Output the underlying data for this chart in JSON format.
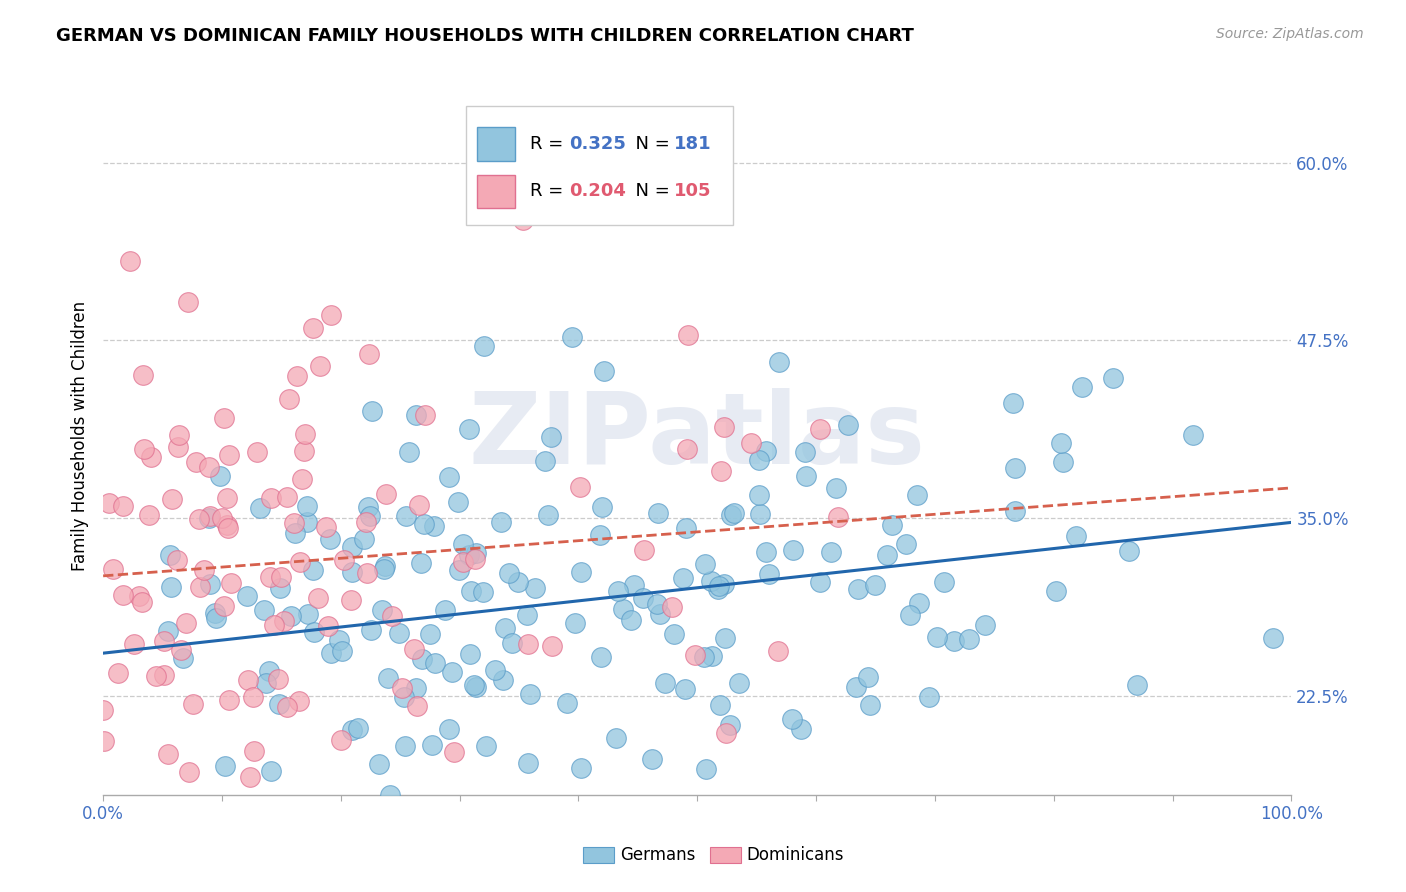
{
  "title": "GERMAN VS DOMINICAN FAMILY HOUSEHOLDS WITH CHILDREN CORRELATION CHART",
  "source": "Source: ZipAtlas.com",
  "ylabel": "Family Households with Children",
  "xlim": [
    0,
    1.0
  ],
  "ylim": [
    0.155,
    0.66
  ],
  "ytick_positions": [
    0.225,
    0.35,
    0.475,
    0.6
  ],
  "ytick_labels": [
    "22.5%",
    "35.0%",
    "47.5%",
    "60.0%"
  ],
  "german_R": 0.325,
  "german_N": 181,
  "dominican_R": 0.204,
  "dominican_N": 105,
  "german_color": "#92c5de",
  "german_edge_color": "#5b9dc9",
  "dominican_color": "#f4a9b5",
  "dominican_edge_color": "#e07090",
  "german_line_color": "#2166ac",
  "dominican_line_color": "#d6604d",
  "watermark": "ZIPatlas",
  "german_seed": 42,
  "dominican_seed": 77,
  "background_color": "#ffffff",
  "grid_color": "#cccccc",
  "tick_color": "#4472c4",
  "title_fontsize": 13,
  "source_fontsize": 10,
  "tick_fontsize": 12,
  "ylabel_fontsize": 12
}
